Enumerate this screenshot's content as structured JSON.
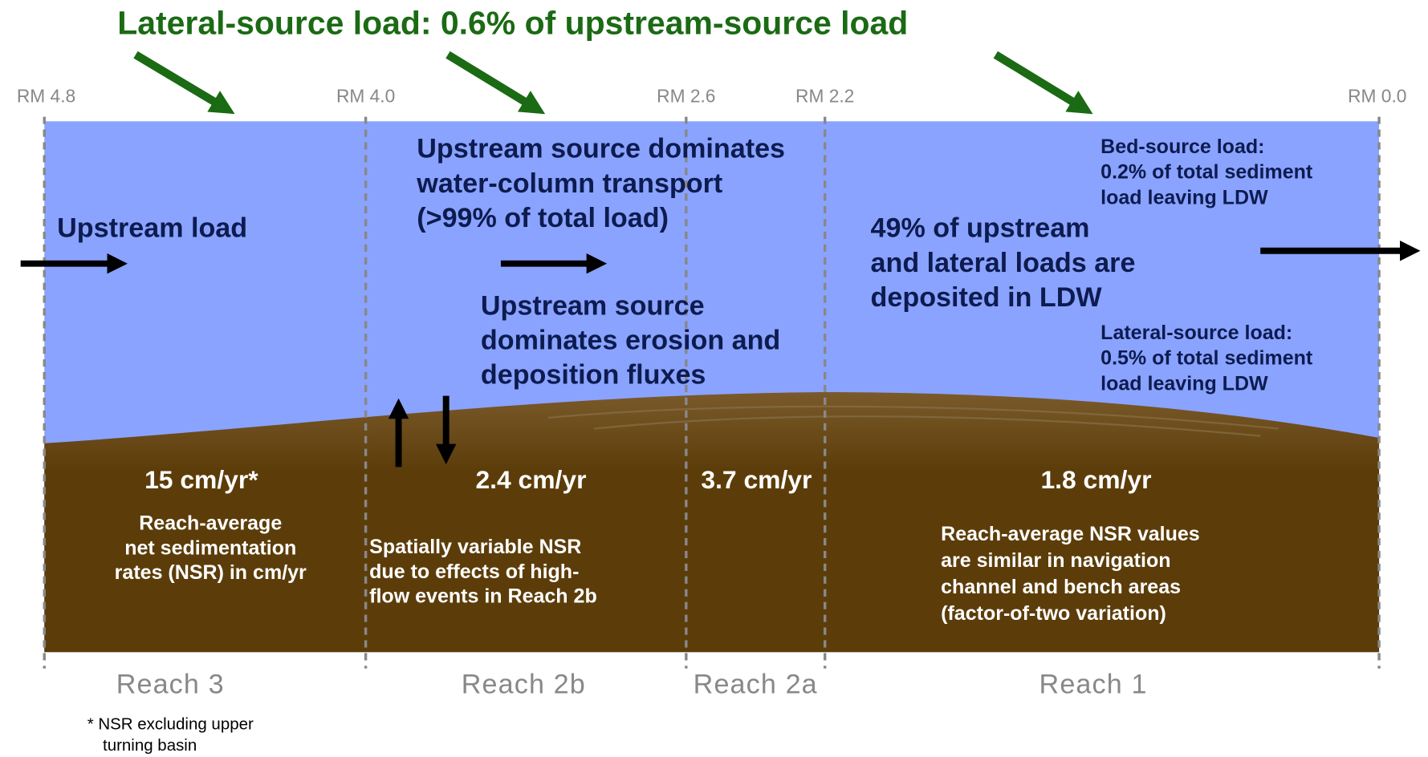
{
  "title": "Lateral-source load: 0.6% of upstream-source load",
  "river_miles": [
    "RM 4.8",
    "RM 4.0",
    "RM 2.6",
    "RM 2.2",
    "RM 0.0"
  ],
  "reaches": [
    "Reach 3",
    "Reach 2b",
    "Reach 2a",
    "Reach 1"
  ],
  "upstream_load": "Upstream load",
  "water_column": [
    "Upstream source dominates",
    "water-column transport",
    "(>99% of total load)"
  ],
  "erosion": [
    "Upstream source",
    "dominates erosion and",
    "deposition fluxes"
  ],
  "deposited": [
    "49% of upstream",
    "and lateral loads are",
    "deposited in LDW"
  ],
  "bed_source": [
    "Bed-source load:",
    "0.2% of total sediment",
    "load leaving LDW"
  ],
  "lateral_source": [
    "Lateral-source load:",
    "0.5% of total sediment",
    "load leaving LDW"
  ],
  "rates": [
    "15 cm/yr*",
    "2.4 cm/yr",
    "3.7 cm/yr",
    "1.8 cm/yr"
  ],
  "reach3_note": [
    "Reach-average",
    "net sedimentation",
    "rates (NSR) in cm/yr"
  ],
  "reach2b_note": [
    "Spatially variable NSR",
    "due to effects of high-",
    "flow events in Reach 2b"
  ],
  "reach1_note": [
    "Reach-average NSR values",
    "are similar in navigation",
    "channel and bench areas",
    "(factor-of-two variation)"
  ],
  "footnote": [
    "* NSR excluding upper",
    "turning basin"
  ]
}
